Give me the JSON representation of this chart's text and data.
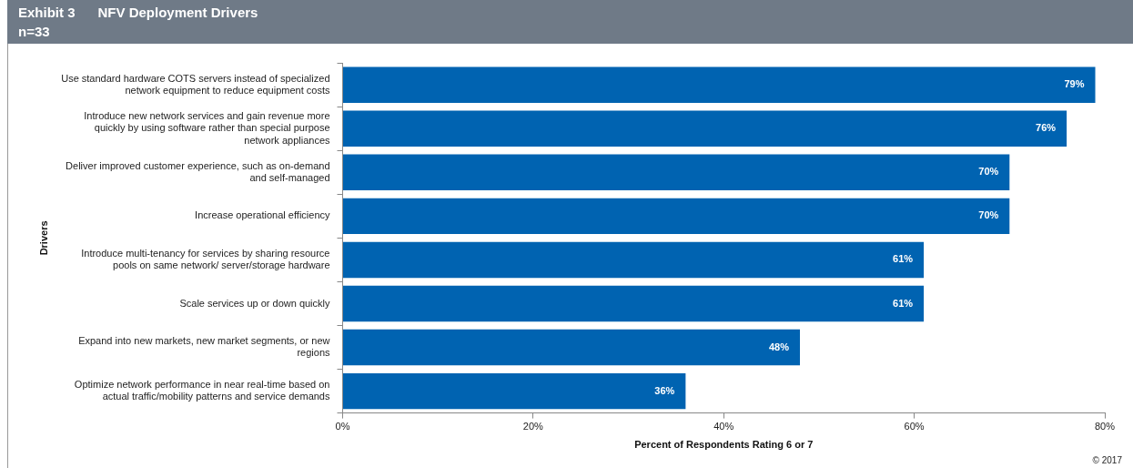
{
  "chart_data": {
    "type": "bar",
    "orientation": "horizontal",
    "title": "Exhibit 3      NFV Deployment Drivers",
    "subtitle": "n=33",
    "categories": [
      "Use standard hardware COTS servers instead of specialized network equipment to reduce equipment costs",
      "Introduce new network services and gain revenue more quickly by using software rather than special purpose network appliances",
      "Deliver improved customer experience, such as on-demand and self-managed",
      "Increase operational efficiency",
      "Introduce multi-tenancy for services by sharing resource pools on same network/ server/storage hardware",
      "Scale services up or down quickly",
      "Expand into new markets, new market segments, or new regions",
      "Optimize network performance in near real-time based on actual traffic/mobility patterns and service demands"
    ],
    "values": [
      79,
      76,
      70,
      70,
      61,
      61,
      48,
      36
    ],
    "value_labels": [
      "79%",
      "76%",
      "70%",
      "70%",
      "61%",
      "61%",
      "48%",
      "36%"
    ],
    "color": "#0063b1",
    "xlim": [
      0,
      80
    ],
    "xticks": [
      {
        "value": 0,
        "label": "0%"
      },
      {
        "value": 20,
        "label": "20%"
      },
      {
        "value": 40,
        "label": "40%"
      },
      {
        "value": 60,
        "label": "60%"
      },
      {
        "value": 80,
        "label": "80%"
      }
    ],
    "xlabel": "Percent of Respondents Rating 6 or 7",
    "ylabel": "Drivers",
    "grid": false,
    "legend": false,
    "annotations": [
      "© 2017"
    ]
  }
}
